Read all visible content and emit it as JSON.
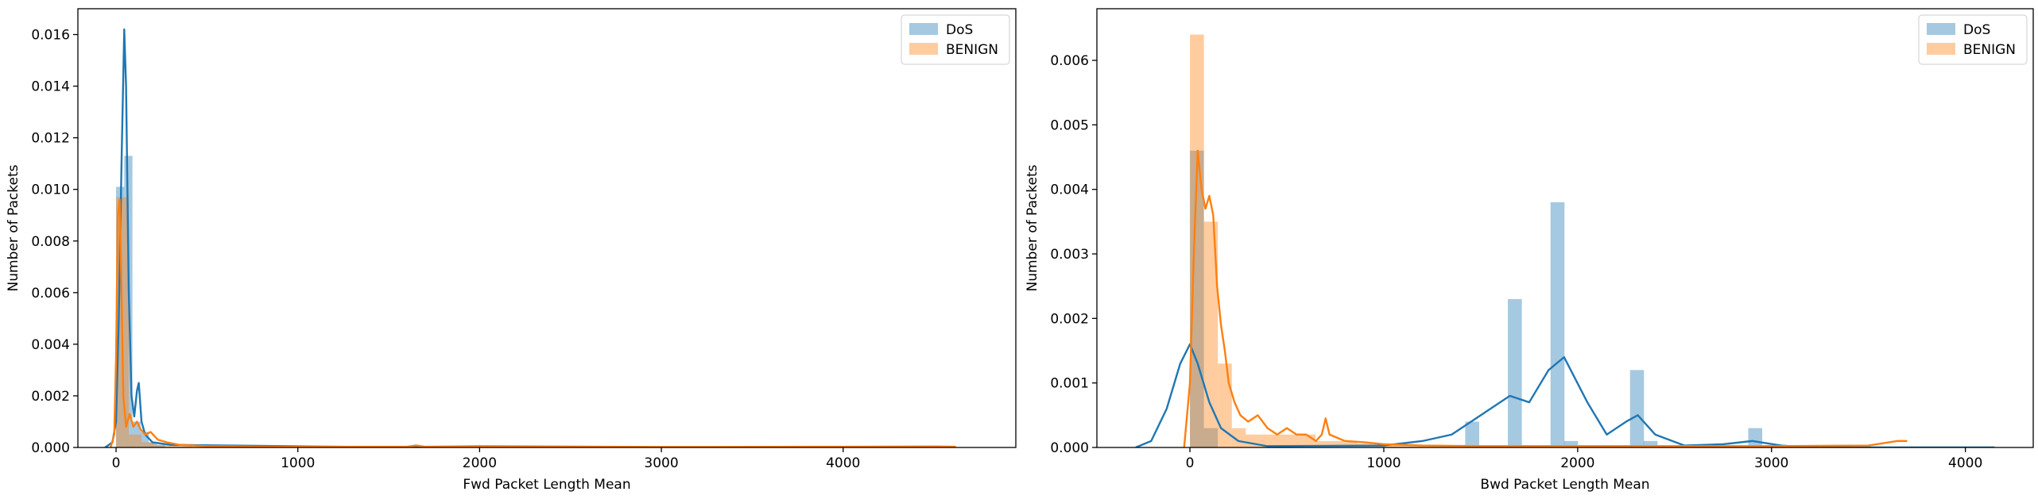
{
  "chart_data": [
    {
      "type": "histogram-kde",
      "title": "",
      "xlabel": "Fwd Packet Length Mean",
      "ylabel": "Number of Packets",
      "xlim": [
        -210,
        4950
      ],
      "ylim": [
        0,
        0.017
      ],
      "xticks": [
        0,
        1000,
        2000,
        3000,
        4000
      ],
      "yticks": [
        0,
        0.002,
        0.004,
        0.006,
        0.008,
        0.01,
        0.012,
        0.014,
        0.016
      ],
      "ytick_labels": [
        "0.000",
        "0.002",
        "0.004",
        "0.006",
        "0.008",
        "0.010",
        "0.012",
        "0.014",
        "0.016"
      ],
      "legend": {
        "position": "top-right",
        "entries": [
          "DoS",
          "BENIGN"
        ]
      },
      "grid": false,
      "series": [
        {
          "name": "DoS",
          "color": "#1f77b4",
          "hist_bin_width": 45,
          "hist": [
            [
              0,
              0.0101
            ],
            [
              45,
              0.0113
            ],
            [
              90,
              0.001
            ],
            [
              135,
              0.0006
            ],
            [
              180,
              0.0002
            ],
            [
              225,
              0.0001
            ]
          ],
          "kde": [
            [
              -60,
              0
            ],
            [
              -20,
              0.0002
            ],
            [
              0,
              0.001
            ],
            [
              15,
              0.005
            ],
            [
              30,
              0.011
            ],
            [
              45,
              0.0162
            ],
            [
              55,
              0.014
            ],
            [
              70,
              0.006
            ],
            [
              85,
              0.002
            ],
            [
              100,
              0.0012
            ],
            [
              115,
              0.0022
            ],
            [
              125,
              0.0025
            ],
            [
              140,
              0.001
            ],
            [
              160,
              0.0005
            ],
            [
              200,
              0.0002
            ],
            [
              300,
              0.0001
            ],
            [
              1600,
              0.0
            ],
            [
              1650,
              5e-05
            ],
            [
              1700,
              0.0
            ],
            [
              1950,
              0.0
            ],
            [
              2000,
              5e-05
            ],
            [
              2050,
              0.0
            ],
            [
              4620,
              0.0
            ]
          ]
        },
        {
          "name": "BENIGN",
          "color": "#ff7f0e",
          "hist_bin_width": 70,
          "hist": [
            [
              0,
              0.0097
            ],
            [
              70,
              0.0005
            ],
            [
              140,
              0.0002
            ],
            [
              210,
              0.0001
            ],
            [
              280,
              0.0001
            ],
            [
              350,
              5e-05
            ]
          ],
          "kde": [
            [
              -30,
              0
            ],
            [
              -10,
              0.0005
            ],
            [
              0,
              0.0035
            ],
            [
              10,
              0.009
            ],
            [
              20,
              0.0096
            ],
            [
              30,
              0.006
            ],
            [
              40,
              0.002
            ],
            [
              55,
              0.0008
            ],
            [
              75,
              0.0013
            ],
            [
              95,
              0.0008
            ],
            [
              115,
              0.001
            ],
            [
              135,
              0.0007
            ],
            [
              160,
              0.0005
            ],
            [
              190,
              0.0006
            ],
            [
              230,
              0.0003
            ],
            [
              280,
              0.0002
            ],
            [
              350,
              0.0001
            ],
            [
              500,
              5e-05
            ],
            [
              800,
              3e-05
            ],
            [
              1600,
              3e-05
            ],
            [
              1650,
              8e-05
            ],
            [
              1700,
              3e-05
            ],
            [
              2000,
              5e-05
            ],
            [
              3000,
              2e-05
            ],
            [
              4000,
              3e-05
            ],
            [
              4500,
              4e-05
            ],
            [
              4620,
              3e-05
            ]
          ]
        }
      ]
    },
    {
      "type": "histogram-kde",
      "title": "",
      "xlabel": "Bwd Packet Length Mean",
      "ylabel": "Number of Packets",
      "xlim": [
        -480,
        4350
      ],
      "ylim": [
        0,
        0.0068
      ],
      "xticks": [
        0,
        1000,
        2000,
        3000,
        4000
      ],
      "yticks": [
        0,
        0.001,
        0.002,
        0.003,
        0.004,
        0.005,
        0.006
      ],
      "ytick_labels": [
        "0.000",
        "0.001",
        "0.002",
        "0.003",
        "0.004",
        "0.005",
        "0.006"
      ],
      "legend": {
        "position": "top-right",
        "entries": [
          "DoS",
          "BENIGN"
        ]
      },
      "grid": false,
      "series": [
        {
          "name": "DoS",
          "color": "#1f77b4",
          "hist_bin_width": 72,
          "hist": [
            [
              0,
              0.0046
            ],
            [
              72,
              0.0003
            ],
            [
              1420,
              0.0004
            ],
            [
              1640,
              0.0023
            ],
            [
              1860,
              0.0038
            ],
            [
              1930,
              0.0001
            ],
            [
              2270,
              0.0012
            ],
            [
              2340,
              0.0001
            ],
            [
              2880,
              0.0003
            ]
          ],
          "kde": [
            [
              -280,
              0
            ],
            [
              -200,
              0.0001
            ],
            [
              -120,
              0.0006
            ],
            [
              -50,
              0.0013
            ],
            [
              0,
              0.0016
            ],
            [
              40,
              0.0013
            ],
            [
              100,
              0.0007
            ],
            [
              160,
              0.0003
            ],
            [
              250,
              0.0001
            ],
            [
              400,
              2e-05
            ],
            [
              1000,
              3e-05
            ],
            [
              1200,
              0.0001
            ],
            [
              1350,
              0.0002
            ],
            [
              1500,
              0.0005
            ],
            [
              1650,
              0.0008
            ],
            [
              1750,
              0.0007
            ],
            [
              1850,
              0.0012
            ],
            [
              1930,
              0.0014
            ],
            [
              2050,
              0.0007
            ],
            [
              2150,
              0.0002
            ],
            [
              2250,
              0.0004
            ],
            [
              2310,
              0.0005
            ],
            [
              2400,
              0.0002
            ],
            [
              2550,
              3e-05
            ],
            [
              2750,
              5e-05
            ],
            [
              2900,
              0.0001
            ],
            [
              3050,
              3e-05
            ],
            [
              3200,
              0.0
            ],
            [
              4150,
              0.0
            ]
          ]
        },
        {
          "name": "BENIGN",
          "color": "#ff7f0e",
          "hist_bin_width": 72,
          "hist": [
            [
              0,
              0.0064
            ],
            [
              72,
              0.0035
            ],
            [
              144,
              0.0013
            ],
            [
              216,
              0.0003
            ],
            [
              288,
              0.0002
            ],
            [
              360,
              0.0002
            ],
            [
              432,
              0.0002
            ],
            [
              504,
              0.0002
            ],
            [
              576,
              0.0002
            ],
            [
              648,
              0.0001
            ],
            [
              720,
              0.0001
            ],
            [
              792,
              8e-05
            ],
            [
              864,
              6e-05
            ],
            [
              936,
              5e-05
            ],
            [
              1008,
              3e-05
            ],
            [
              1080,
              3e-05
            ],
            [
              1152,
              2e-05
            ],
            [
              1224,
              2e-05
            ],
            [
              1296,
              2e-05
            ]
          ],
          "kde": [
            [
              -30,
              0
            ],
            [
              0,
              0.001
            ],
            [
              20,
              0.003
            ],
            [
              40,
              0.0046
            ],
            [
              60,
              0.004
            ],
            [
              80,
              0.0037
            ],
            [
              100,
              0.0039
            ],
            [
              120,
              0.0036
            ],
            [
              140,
              0.0025
            ],
            [
              160,
              0.0019
            ],
            [
              180,
              0.0015
            ],
            [
              200,
              0.001
            ],
            [
              230,
              0.0007
            ],
            [
              260,
              0.0005
            ],
            [
              300,
              0.0004
            ],
            [
              350,
              0.0005
            ],
            [
              400,
              0.0003
            ],
            [
              450,
              0.0002
            ],
            [
              500,
              0.0003
            ],
            [
              550,
              0.0002
            ],
            [
              600,
              0.0002
            ],
            [
              650,
              0.0001
            ],
            [
              680,
              0.0002
            ],
            [
              700,
              0.00045
            ],
            [
              720,
              0.0002
            ],
            [
              800,
              0.0001
            ],
            [
              900,
              8e-05
            ],
            [
              1000,
              5e-05
            ],
            [
              1200,
              3e-05
            ],
            [
              1500,
              2e-05
            ],
            [
              2000,
              2e-05
            ],
            [
              2500,
              2e-05
            ],
            [
              3000,
              2e-05
            ],
            [
              3500,
              3e-05
            ],
            [
              3650,
              0.0001
            ],
            [
              3700,
              0.0001
            ]
          ]
        }
      ]
    }
  ]
}
